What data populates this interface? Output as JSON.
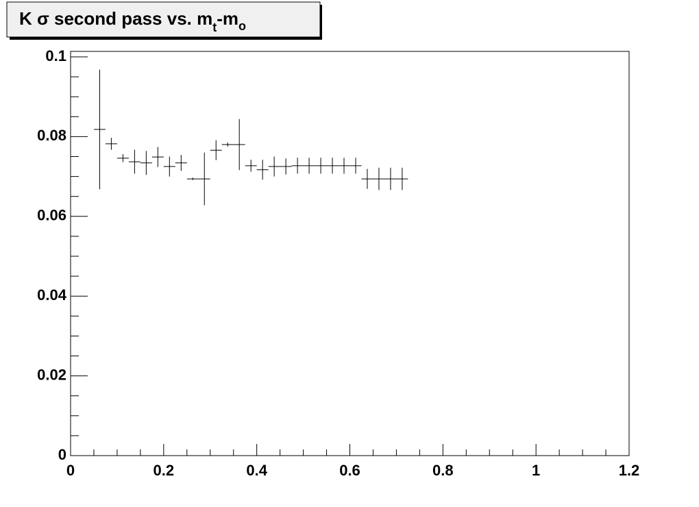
{
  "chart_data": {
    "type": "errorbar",
    "title_parts": [
      "K σ second pass vs. m",
      "t",
      "-m",
      "o"
    ],
    "x": [
      0.0625,
      0.0875,
      0.1125,
      0.1375,
      0.1625,
      0.1875,
      0.2125,
      0.2375,
      0.2625,
      0.2875,
      0.3125,
      0.3375,
      0.3625,
      0.3875,
      0.4125,
      0.4375,
      0.4625,
      0.4875,
      0.5125,
      0.5375,
      0.5625,
      0.5875,
      0.6125,
      0.6375,
      0.6625,
      0.6875,
      0.7125
    ],
    "values": [
      0.0818,
      0.0782,
      0.0746,
      0.0737,
      0.0734,
      0.0749,
      0.0725,
      0.0734,
      0.0694,
      0.0694,
      0.0766,
      0.078,
      0.078,
      0.0727,
      0.0717,
      0.0725,
      0.0725,
      0.0727,
      0.0727,
      0.0727,
      0.0727,
      0.0727,
      0.0727,
      0.0694,
      0.0694,
      0.0694,
      0.0694
    ],
    "errors": [
      0.015,
      0.0015,
      0.001,
      0.003,
      0.003,
      0.0025,
      0.0025,
      0.002,
      0.0003,
      0.0066,
      0.0025,
      0.0005,
      0.0064,
      0.0015,
      0.0025,
      0.0025,
      0.002,
      0.002,
      0.002,
      0.002,
      0.002,
      0.002,
      0.002,
      0.0025,
      0.0028,
      0.0028,
      0.0028
    ],
    "x_half_width": 0.0125,
    "color": "#000000",
    "xlim": [
      0,
      1.2
    ],
    "ylim": [
      0,
      0.1
    ],
    "xticks": [
      0,
      0.2,
      0.4,
      0.6,
      0.8,
      1,
      1.2
    ],
    "yticks": [
      0,
      0.02,
      0.04,
      0.06,
      0.08,
      0.1
    ],
    "xminor": [
      0.05,
      0.1,
      0.15,
      0.25,
      0.3,
      0.35,
      0.45,
      0.5,
      0.55,
      0.65,
      0.7,
      0.75,
      0.85,
      0.9,
      0.95,
      1.05,
      1.1,
      1.15
    ],
    "yminor": [
      0.005,
      0.01,
      0.015,
      0.025,
      0.03,
      0.035,
      0.045,
      0.05,
      0.055,
      0.065,
      0.07,
      0.075,
      0.085,
      0.09,
      0.095
    ]
  }
}
